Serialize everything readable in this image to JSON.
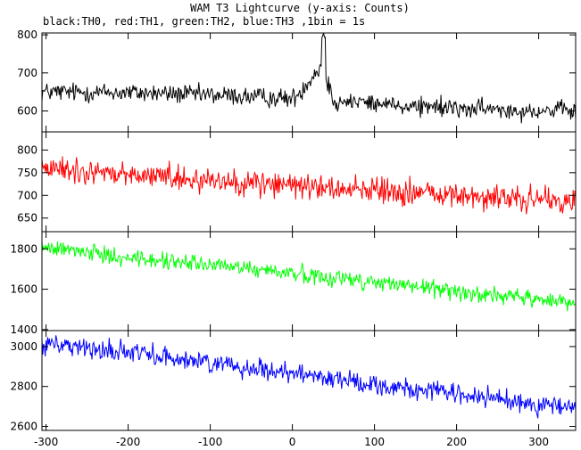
{
  "chart_data": {
    "type": "line",
    "title": "WAM T3 Lightcurve (y-axis: Counts)",
    "subtitle": "black:TH0, red:TH1, green:TH2, blue:TH3 ,1bin = 1s",
    "x_range": [
      -305,
      345
    ],
    "x_ticks": [
      -300,
      -200,
      -100,
      0,
      100,
      200,
      300
    ],
    "grid": false,
    "panels": [
      {
        "series_name": "TH0",
        "color": "#000000",
        "ylim": [
          545,
          805
        ],
        "y_ticks": [
          600,
          700,
          800
        ],
        "mean_curve": [
          [
            -305,
            650
          ],
          [
            -200,
            648
          ],
          [
            -100,
            642
          ],
          [
            0,
            632
          ],
          [
            10,
            650
          ],
          [
            20,
            680
          ],
          [
            30,
            705
          ],
          [
            38,
            730
          ],
          [
            42,
            680
          ],
          [
            50,
            628
          ],
          [
            100,
            620
          ],
          [
            200,
            606
          ],
          [
            345,
            600
          ]
        ],
        "noise_amplitude": 38,
        "spike_max": 800
      },
      {
        "series_name": "TH1",
        "color": "#ff0000",
        "ylim": [
          620,
          840
        ],
        "y_ticks": [
          650,
          700,
          750,
          800
        ],
        "mean_curve": [
          [
            -305,
            760
          ],
          [
            -200,
            745
          ],
          [
            -100,
            735
          ],
          [
            0,
            722
          ],
          [
            100,
            712
          ],
          [
            200,
            700
          ],
          [
            345,
            685
          ]
        ],
        "noise_amplitude": 42
      },
      {
        "series_name": "TH2",
        "color": "#00ff00",
        "ylim": [
          1395,
          1885
        ],
        "y_ticks": [
          1400,
          1600,
          1800
        ],
        "mean_curve": [
          [
            -305,
            1810
          ],
          [
            -200,
            1755
          ],
          [
            -100,
            1720
          ],
          [
            0,
            1680
          ],
          [
            100,
            1635
          ],
          [
            200,
            1590
          ],
          [
            345,
            1530
          ]
        ],
        "noise_amplitude": 62
      },
      {
        "series_name": "TH3",
        "color": "#0000ff",
        "ylim": [
          2580,
          3080
        ],
        "y_ticks": [
          2600,
          2800,
          3000
        ],
        "mean_curve": [
          [
            -305,
            3020
          ],
          [
            -200,
            2970
          ],
          [
            -100,
            2920
          ],
          [
            0,
            2870
          ],
          [
            100,
            2810
          ],
          [
            200,
            2760
          ],
          [
            345,
            2690
          ]
        ],
        "noise_amplitude": 75
      }
    ]
  }
}
